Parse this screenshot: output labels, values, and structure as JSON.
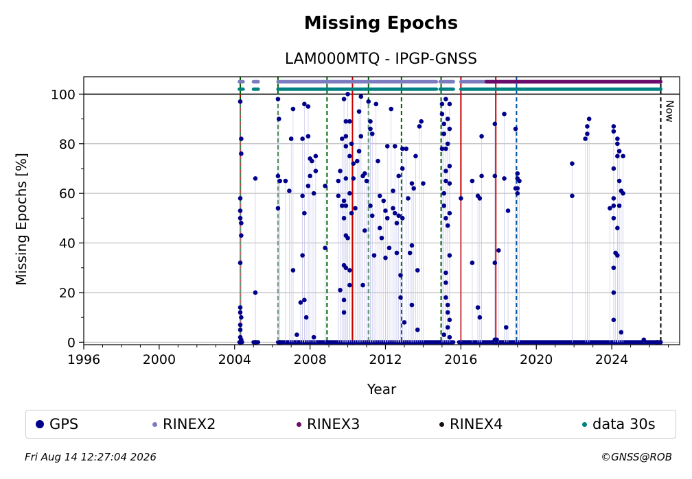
{
  "chart_data": {
    "type": "scatter",
    "title": "Missing Epochs",
    "subtitle": "LAM000MTQ - IPGP-GNSS",
    "xlabel": "Year",
    "ylabel": "Missing Epochs [%]",
    "xlim": [
      1996,
      2027.6
    ],
    "ylim": [
      -1,
      107
    ],
    "x_ticks": [
      "1996",
      "2000",
      "2004",
      "2008",
      "2012",
      "2016",
      "2020",
      "2024"
    ],
    "x_tick_values": [
      1996,
      2000,
      2004,
      2008,
      2012,
      2016,
      2020,
      2024
    ],
    "y_ticks": [
      "0",
      "20",
      "40",
      "60",
      "80",
      "100"
    ],
    "y_tick_values": [
      0,
      20,
      40,
      60,
      80,
      100
    ],
    "grid": "horizontal",
    "now_label": "Now",
    "now_x": 2026.6,
    "colors": {
      "gps": "#00008b",
      "rinex2": "#7b7bc0",
      "rinex3": "#6a0a6a",
      "rinex4": "#1a0a1a",
      "data30s": "#008080",
      "red_line": "#cc0000",
      "green_line": "#006400",
      "blue_line": "#0050a0"
    },
    "vlines": {
      "red": [
        2004.3,
        2010.25,
        2016.0,
        2017.85
      ],
      "green": [
        2004.3,
        2006.3,
        2008.9,
        2011.1,
        2012.85,
        2014.95
      ],
      "blue": [
        2018.95
      ],
      "now": [
        2026.6
      ]
    },
    "series": [
      {
        "name": "GPS",
        "points": [
          [
            2004.3,
            97
          ],
          [
            2004.35,
            82
          ],
          [
            2004.35,
            76
          ],
          [
            2004.3,
            58
          ],
          [
            2004.3,
            53
          ],
          [
            2004.3,
            50
          ],
          [
            2004.35,
            48
          ],
          [
            2004.35,
            43
          ],
          [
            2004.3,
            32
          ],
          [
            2004.3,
            14
          ],
          [
            2004.3,
            12
          ],
          [
            2004.35,
            10
          ],
          [
            2004.3,
            7
          ],
          [
            2004.3,
            5
          ],
          [
            2004.3,
            2
          ],
          [
            2004.35,
            1
          ],
          [
            2004.3,
            0
          ],
          [
            2005.1,
            66
          ],
          [
            2005.1,
            20
          ],
          [
            2005.1,
            0
          ],
          [
            2006.3,
            98
          ],
          [
            2006.35,
            90
          ],
          [
            2006.3,
            67
          ],
          [
            2006.4,
            65
          ],
          [
            2006.3,
            54
          ],
          [
            2006.4,
            0
          ],
          [
            2006.7,
            65
          ],
          [
            2006.9,
            61
          ],
          [
            2007.0,
            82
          ],
          [
            2007.1,
            94
          ],
          [
            2007.1,
            29
          ],
          [
            2007.3,
            3
          ],
          [
            2007.5,
            16
          ],
          [
            2007.6,
            82
          ],
          [
            2007.6,
            59
          ],
          [
            2007.7,
            52
          ],
          [
            2007.7,
            96
          ],
          [
            2007.9,
            83
          ],
          [
            2007.6,
            35
          ],
          [
            2007.7,
            17
          ],
          [
            2007.8,
            10
          ],
          [
            2007.9,
            63
          ],
          [
            2007.9,
            95
          ],
          [
            2008.0,
            74
          ],
          [
            2008.0,
            67
          ],
          [
            2008.1,
            73
          ],
          [
            2008.2,
            60
          ],
          [
            2008.3,
            75
          ],
          [
            2008.3,
            69
          ],
          [
            2008.2,
            2
          ],
          [
            2008.8,
            63
          ],
          [
            2008.8,
            38
          ],
          [
            2009.5,
            65
          ],
          [
            2009.5,
            59
          ],
          [
            2009.6,
            69
          ],
          [
            2009.6,
            21
          ],
          [
            2009.7,
            82
          ],
          [
            2009.7,
            55
          ],
          [
            2009.8,
            98
          ],
          [
            2009.8,
            57
          ],
          [
            2009.8,
            50
          ],
          [
            2009.8,
            31
          ],
          [
            2009.9,
            89
          ],
          [
            2009.9,
            83
          ],
          [
            2009.9,
            79
          ],
          [
            2009.9,
            66
          ],
          [
            2009.9,
            55
          ],
          [
            2009.9,
            43
          ],
          [
            2009.9,
            30
          ],
          [
            2009.8,
            17
          ],
          [
            2009.8,
            12
          ],
          [
            2010.0,
            100
          ],
          [
            2010.0,
            42
          ],
          [
            2010.1,
            89
          ],
          [
            2010.1,
            75
          ],
          [
            2010.1,
            60
          ],
          [
            2010.1,
            29
          ],
          [
            2010.1,
            23
          ],
          [
            2010.2,
            80
          ],
          [
            2010.2,
            52
          ],
          [
            2010.3,
            72
          ],
          [
            2010.3,
            66
          ],
          [
            2010.4,
            54
          ],
          [
            2010.5,
            73
          ],
          [
            2010.6,
            93
          ],
          [
            2010.6,
            77
          ],
          [
            2010.7,
            99
          ],
          [
            2010.7,
            83
          ],
          [
            2010.8,
            67
          ],
          [
            2010.8,
            23
          ],
          [
            2010.9,
            68
          ],
          [
            2010.9,
            45
          ],
          [
            2011.0,
            65
          ],
          [
            2011.1,
            97
          ],
          [
            2011.2,
            89
          ],
          [
            2011.2,
            86
          ],
          [
            2011.3,
            84
          ],
          [
            2011.2,
            55
          ],
          [
            2011.3,
            51
          ],
          [
            2011.4,
            35
          ],
          [
            2011.5,
            96
          ],
          [
            2011.6,
            73
          ],
          [
            2011.7,
            59
          ],
          [
            2011.7,
            46
          ],
          [
            2011.8,
            42
          ],
          [
            2011.9,
            57
          ],
          [
            2012.0,
            53
          ],
          [
            2012.0,
            34
          ],
          [
            2012.1,
            79
          ],
          [
            2012.1,
            50
          ],
          [
            2012.2,
            38
          ],
          [
            2012.3,
            94
          ],
          [
            2012.4,
            61
          ],
          [
            2012.4,
            54
          ],
          [
            2012.5,
            79
          ],
          [
            2012.5,
            52
          ],
          [
            2012.6,
            48
          ],
          [
            2012.6,
            36
          ],
          [
            2012.7,
            67
          ],
          [
            2012.7,
            51
          ],
          [
            2012.8,
            18
          ],
          [
            2012.8,
            27
          ],
          [
            2012.9,
            50
          ],
          [
            2012.9,
            78
          ],
          [
            2012.9,
            70
          ],
          [
            2013.0,
            8
          ],
          [
            2013.1,
            78
          ],
          [
            2013.2,
            58
          ],
          [
            2013.3,
            36
          ],
          [
            2013.4,
            39
          ],
          [
            2013.4,
            64
          ],
          [
            2013.5,
            62
          ],
          [
            2013.4,
            15
          ],
          [
            2013.6,
            75
          ],
          [
            2013.7,
            29
          ],
          [
            2013.7,
            5
          ],
          [
            2013.8,
            87
          ],
          [
            2013.9,
            89
          ],
          [
            2014.0,
            64
          ],
          [
            2015.0,
            96
          ],
          [
            2015.0,
            92
          ],
          [
            2015.0,
            78
          ],
          [
            2015.1,
            88
          ],
          [
            2015.1,
            84
          ],
          [
            2015.1,
            60
          ],
          [
            2015.1,
            55
          ],
          [
            2015.2,
            98
          ],
          [
            2015.2,
            78
          ],
          [
            2015.2,
            69
          ],
          [
            2015.2,
            65
          ],
          [
            2015.2,
            50
          ],
          [
            2015.3,
            90
          ],
          [
            2015.3,
            80
          ],
          [
            2015.3,
            47
          ],
          [
            2015.2,
            28
          ],
          [
            2015.2,
            24
          ],
          [
            2015.2,
            18
          ],
          [
            2015.3,
            15
          ],
          [
            2015.3,
            12
          ],
          [
            2015.3,
            6
          ],
          [
            2015.1,
            3
          ],
          [
            2015.4,
            96
          ],
          [
            2015.4,
            86
          ],
          [
            2015.4,
            71
          ],
          [
            2015.4,
            64
          ],
          [
            2015.4,
            52
          ],
          [
            2015.4,
            35
          ],
          [
            2015.4,
            9
          ],
          [
            2015.4,
            2
          ],
          [
            2016.0,
            58
          ],
          [
            2016.6,
            65
          ],
          [
            2016.6,
            32
          ],
          [
            2016.9,
            59
          ],
          [
            2017.0,
            58
          ],
          [
            2016.9,
            14
          ],
          [
            2017.0,
            10
          ],
          [
            2017.1,
            83
          ],
          [
            2017.1,
            67
          ],
          [
            2017.8,
            88
          ],
          [
            2017.8,
            67
          ],
          [
            2017.8,
            32
          ],
          [
            2017.8,
            1
          ],
          [
            2017.9,
            1
          ],
          [
            2018.0,
            37
          ],
          [
            2018.3,
            66
          ],
          [
            2018.3,
            92
          ],
          [
            2018.4,
            6
          ],
          [
            2018.5,
            53
          ],
          [
            2018.9,
            62
          ],
          [
            2018.9,
            86
          ],
          [
            2019.0,
            68
          ],
          [
            2019.0,
            66
          ],
          [
            2019.0,
            62
          ],
          [
            2019.1,
            65
          ],
          [
            2019.0,
            60
          ],
          [
            2021.9,
            72
          ],
          [
            2021.9,
            59
          ],
          [
            2022.6,
            82
          ],
          [
            2022.7,
            84
          ],
          [
            2022.7,
            87
          ],
          [
            2022.8,
            90
          ],
          [
            2023.9,
            54
          ],
          [
            2024.1,
            87
          ],
          [
            2024.1,
            85
          ],
          [
            2024.1,
            70
          ],
          [
            2024.1,
            58
          ],
          [
            2024.1,
            55
          ],
          [
            2024.1,
            50
          ],
          [
            2024.1,
            30
          ],
          [
            2024.1,
            20
          ],
          [
            2024.1,
            9
          ],
          [
            2024.2,
            36
          ],
          [
            2024.3,
            82
          ],
          [
            2024.3,
            80
          ],
          [
            2024.3,
            75
          ],
          [
            2024.3,
            46
          ],
          [
            2024.3,
            35
          ],
          [
            2024.4,
            77
          ],
          [
            2024.4,
            65
          ],
          [
            2024.4,
            55
          ],
          [
            2024.5,
            61
          ],
          [
            2024.5,
            4
          ],
          [
            2024.6,
            75
          ],
          [
            2024.6,
            60
          ],
          [
            2025.7,
            1
          ],
          [
            2026.4,
            0
          ]
        ],
        "baseline_ranges": [
          [
            2004.25,
            2004.4
          ],
          [
            2005.0,
            2005.25
          ],
          [
            2006.3,
            2015.6
          ],
          [
            2015.9,
            2026.6
          ]
        ]
      },
      {
        "name": "RINEX2",
        "y": 105,
        "ranges": [
          [
            2004.25,
            2004.45
          ],
          [
            2005.0,
            2005.25
          ],
          [
            2006.3,
            2014.7
          ],
          [
            2014.9,
            2015.6
          ],
          [
            2016.0,
            2026.6
          ]
        ]
      },
      {
        "name": "RINEX3",
        "y": 105,
        "ranges": [
          [
            2017.35,
            2026.6
          ]
        ]
      },
      {
        "name": "RINEX4",
        "y": 105,
        "ranges": []
      },
      {
        "name": "data 30s",
        "y": 102,
        "ranges": [
          [
            2004.25,
            2004.45
          ],
          [
            2005.0,
            2005.25
          ],
          [
            2006.3,
            2014.7
          ],
          [
            2014.9,
            2015.6
          ],
          [
            2016.0,
            2026.6
          ]
        ]
      }
    ]
  },
  "footer": {
    "timestamp": "Fri Aug 14 12:27:04 2026",
    "copyright": "©GNSS@ROB"
  }
}
